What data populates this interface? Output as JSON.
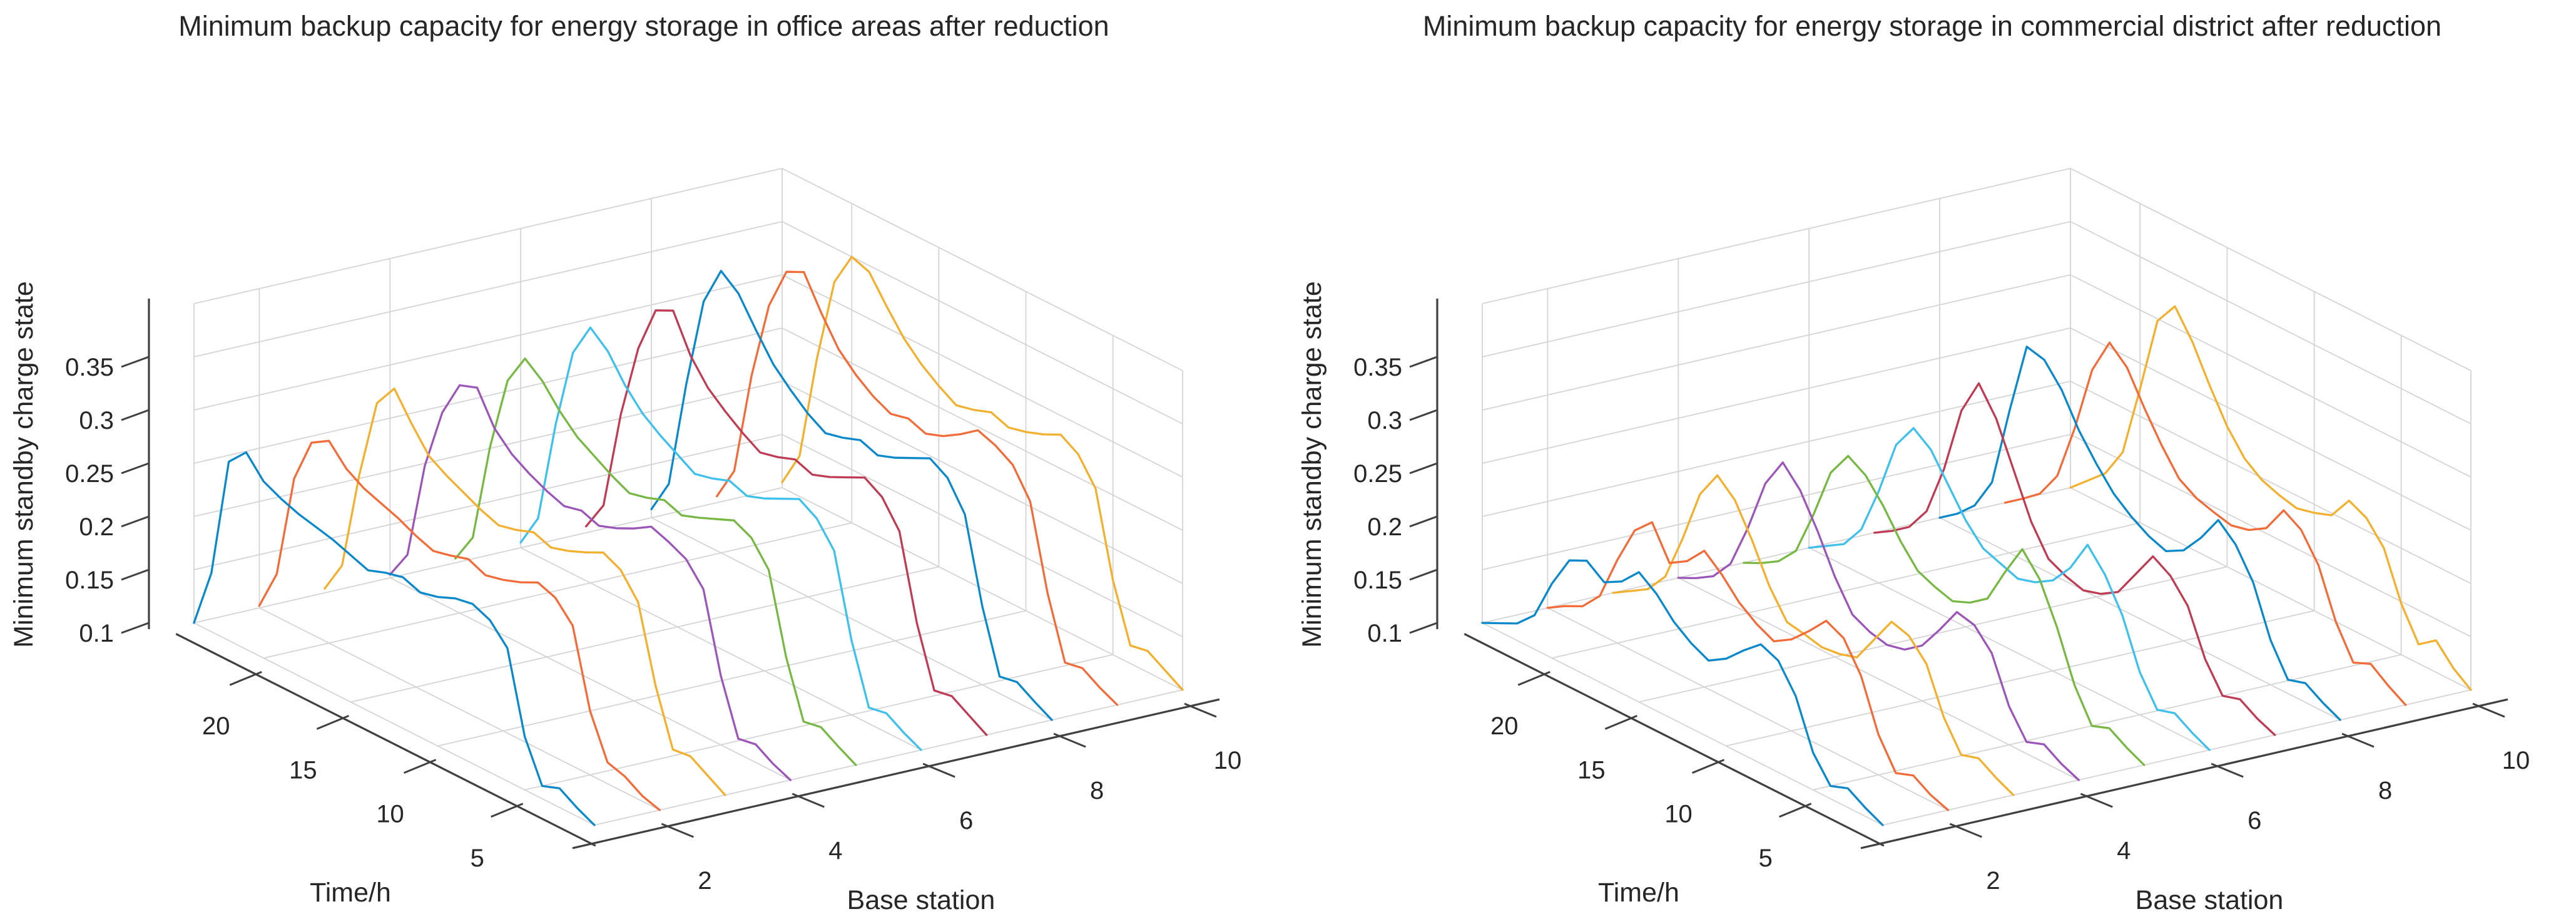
{
  "page": {
    "background": "#ffffff"
  },
  "panels": [
    {
      "title": "Minimum backup capacity for energy storage in office areas after reduction"
    },
    {
      "title": "Minimum backup capacity for energy storage in commercial district after reduction"
    }
  ],
  "chart_data": [
    {
      "type": "line",
      "projection": "3d-waterfall",
      "title": "Minimum backup capacity for energy storage in office areas after reduction",
      "xlabel": "Time/h",
      "ylabel": "Base station",
      "zlabel": "Minimum standby charge state",
      "xticks": [
        5,
        10,
        15,
        20
      ],
      "yticks": [
        2,
        4,
        6,
        8,
        10
      ],
      "zticks": [
        0.1,
        0.15,
        0.2,
        0.25,
        0.3,
        0.35
      ],
      "ztick_labels": [
        "0.1",
        "0.15",
        "0.2",
        "0.25",
        "0.3",
        "0.35"
      ],
      "xlim": [
        1,
        24
      ],
      "ylim": [
        1,
        10
      ],
      "zlim": [
        0.1,
        0.4
      ],
      "grid": true,
      "x_hours": [
        1,
        2,
        3,
        4,
        5,
        6,
        7,
        8,
        9,
        10,
        11,
        12,
        13,
        14,
        15,
        16,
        17,
        18,
        19,
        20,
        21,
        22,
        23,
        24
      ],
      "series": [
        {
          "name": "Base station 1",
          "color": "#0988CB",
          "values": [
            0.1,
            0.108,
            0.118,
            0.112,
            0.15,
            0.225,
            0.243,
            0.25,
            0.247,
            0.24,
            0.236,
            0.242,
            0.238,
            0.232,
            0.238,
            0.244,
            0.248,
            0.252,
            0.258,
            0.266,
            0.285,
            0.268,
            0.155,
            0.1
          ]
        },
        {
          "name": "Base station 2",
          "color": "#F26B38",
          "values": [
            0.1,
            0.105,
            0.115,
            0.12,
            0.16,
            0.232,
            0.25,
            0.256,
            0.248,
            0.242,
            0.238,
            0.245,
            0.24,
            0.236,
            0.242,
            0.25,
            0.256,
            0.262,
            0.272,
            0.29,
            0.28,
            0.238,
            0.14,
            0.102
          ]
        },
        {
          "name": "Base station 3",
          "color": "#F2B02E",
          "values": [
            0.1,
            0.11,
            0.12,
            0.118,
            0.17,
            0.24,
            0.262,
            0.27,
            0.262,
            0.255,
            0.25,
            0.256,
            0.25,
            0.246,
            0.252,
            0.26,
            0.268,
            0.278,
            0.3,
            0.325,
            0.303,
            0.228,
            0.134,
            0.104
          ]
        },
        {
          "name": "Base station 4",
          "color": "#9C56B8",
          "values": [
            0.1,
            0.107,
            0.117,
            0.114,
            0.165,
            0.238,
            0.258,
            0.266,
            0.272,
            0.262,
            0.254,
            0.248,
            0.254,
            0.25,
            0.256,
            0.264,
            0.274,
            0.29,
            0.32,
            0.314,
            0.28,
            0.222,
            0.13,
            0.103
          ]
        },
        {
          "name": "Base station 5",
          "color": "#77B843",
          "values": [
            0.1,
            0.109,
            0.119,
            0.116,
            0.168,
            0.242,
            0.264,
            0.272,
            0.265,
            0.258,
            0.252,
            0.258,
            0.252,
            0.248,
            0.256,
            0.266,
            0.276,
            0.292,
            0.312,
            0.325,
            0.296,
            0.226,
            0.132,
            0.104
          ]
        },
        {
          "name": "Base station 6",
          "color": "#3EC0ED",
          "values": [
            0.1,
            0.108,
            0.118,
            0.115,
            0.17,
            0.246,
            0.268,
            0.278,
            0.27,
            0.262,
            0.256,
            0.262,
            0.256,
            0.252,
            0.262,
            0.272,
            0.284,
            0.302,
            0.326,
            0.34,
            0.308,
            0.232,
            0.136,
            0.105
          ]
        },
        {
          "name": "Base station 7",
          "color": "#BE3B53",
          "values": [
            0.1,
            0.11,
            0.12,
            0.117,
            0.172,
            0.25,
            0.274,
            0.284,
            0.276,
            0.268,
            0.262,
            0.268,
            0.262,
            0.258,
            0.268,
            0.28,
            0.294,
            0.316,
            0.35,
            0.342,
            0.298,
            0.228,
            0.134,
            0.106
          ]
        },
        {
          "name": "Base station 8",
          "color": "#0988CB",
          "values": [
            0.1,
            0.109,
            0.119,
            0.116,
            0.174,
            0.252,
            0.278,
            0.288,
            0.28,
            0.272,
            0.266,
            0.272,
            0.266,
            0.262,
            0.272,
            0.286,
            0.302,
            0.326,
            0.352,
            0.365,
            0.328,
            0.242,
            0.14,
            0.108
          ]
        },
        {
          "name": "Base station 9",
          "color": "#F26B38",
          "values": [
            0.1,
            0.108,
            0.118,
            0.115,
            0.172,
            0.25,
            0.276,
            0.286,
            0.292,
            0.28,
            0.27,
            0.264,
            0.27,
            0.266,
            0.274,
            0.286,
            0.302,
            0.328,
            0.358,
            0.35,
            0.31,
            0.236,
            0.138,
            0.106
          ]
        },
        {
          "name": "Base station 10",
          "color": "#F2B02E",
          "values": [
            0.1,
            0.11,
            0.12,
            0.117,
            0.17,
            0.248,
            0.272,
            0.282,
            0.274,
            0.268,
            0.264,
            0.27,
            0.264,
            0.26,
            0.27,
            0.282,
            0.298,
            0.32,
            0.344,
            0.35,
            0.318,
            0.238,
            0.138,
            0.105
          ]
        }
      ]
    },
    {
      "type": "line",
      "projection": "3d-waterfall",
      "title": "Minimum backup capacity for energy storage in commercial district after reduction",
      "xlabel": "Time/h",
      "ylabel": "Base station",
      "zlabel": "Minimum standby charge state",
      "xticks": [
        5,
        10,
        15,
        20
      ],
      "yticks": [
        2,
        4,
        6,
        8,
        10
      ],
      "zticks": [
        0.1,
        0.15,
        0.2,
        0.25,
        0.3,
        0.35
      ],
      "ztick_labels": [
        "0.1",
        "0.15",
        "0.2",
        "0.25",
        "0.3",
        "0.35"
      ],
      "xlim": [
        1,
        24
      ],
      "ylim": [
        1,
        10
      ],
      "zlim": [
        0.1,
        0.4
      ],
      "grid": true,
      "x_hours": [
        1,
        2,
        3,
        4,
        5,
        6,
        7,
        8,
        9,
        10,
        11,
        12,
        13,
        14,
        15,
        16,
        17,
        18,
        19,
        20,
        21,
        22,
        23,
        24
      ],
      "series": [
        {
          "name": "Base station 1",
          "color": "#0988CB",
          "values": [
            0.1,
            0.108,
            0.118,
            0.112,
            0.135,
            0.18,
            0.205,
            0.212,
            0.198,
            0.182,
            0.172,
            0.18,
            0.192,
            0.21,
            0.222,
            0.205,
            0.196,
            0.208,
            0.2,
            0.17,
            0.132,
            0.116,
            0.108,
            0.1
          ]
        },
        {
          "name": "Base station 2",
          "color": "#F26B38",
          "values": [
            0.1,
            0.106,
            0.116,
            0.11,
            0.138,
            0.185,
            0.212,
            0.22,
            0.202,
            0.186,
            0.176,
            0.184,
            0.196,
            0.214,
            0.228,
            0.21,
            0.2,
            0.23,
            0.214,
            0.178,
            0.136,
            0.118,
            0.11,
            0.1
          ]
        },
        {
          "name": "Base station 3",
          "color": "#F2B02E",
          "values": [
            0.1,
            0.108,
            0.118,
            0.113,
            0.14,
            0.182,
            0.2,
            0.205,
            0.18,
            0.155,
            0.15,
            0.148,
            0.152,
            0.155,
            0.18,
            0.215,
            0.245,
            0.26,
            0.234,
            0.184,
            0.14,
            0.12,
            0.11,
            0.1
          ]
        },
        {
          "name": "Base station 4",
          "color": "#9C56B8",
          "values": [
            0.1,
            0.107,
            0.117,
            0.111,
            0.136,
            0.178,
            0.196,
            0.2,
            0.175,
            0.152,
            0.14,
            0.136,
            0.14,
            0.148,
            0.175,
            0.21,
            0.24,
            0.258,
            0.23,
            0.18,
            0.138,
            0.118,
            0.108,
            0.1
          ]
        },
        {
          "name": "Base station 5",
          "color": "#77B843",
          "values": [
            0.1,
            0.108,
            0.118,
            0.112,
            0.142,
            0.188,
            0.225,
            0.245,
            0.215,
            0.182,
            0.17,
            0.163,
            0.168,
            0.175,
            0.195,
            0.22,
            0.24,
            0.25,
            0.226,
            0.178,
            0.136,
            0.118,
            0.108,
            0.1
          ]
        },
        {
          "name": "Base station 6",
          "color": "#3EC0ED",
          "values": [
            0.1,
            0.108,
            0.118,
            0.113,
            0.14,
            0.185,
            0.215,
            0.235,
            0.205,
            0.185,
            0.175,
            0.17,
            0.176,
            0.182,
            0.2,
            0.225,
            0.25,
            0.262,
            0.238,
            0.186,
            0.142,
            0.12,
            0.11,
            0.1
          ]
        },
        {
          "name": "Base station 7",
          "color": "#BE3B53",
          "values": [
            0.1,
            0.107,
            0.117,
            0.112,
            0.138,
            0.18,
            0.2,
            0.21,
            0.185,
            0.16,
            0.15,
            0.145,
            0.15,
            0.158,
            0.185,
            0.225,
            0.265,
            0.29,
            0.256,
            0.193,
            0.145,
            0.122,
            0.11,
            0.1
          ]
        },
        {
          "name": "Base station 8",
          "color": "#0988CB",
          "values": [
            0.1,
            0.108,
            0.118,
            0.113,
            0.142,
            0.188,
            0.215,
            0.23,
            0.205,
            0.185,
            0.176,
            0.182,
            0.192,
            0.205,
            0.225,
            0.248,
            0.278,
            0.298,
            0.302,
            0.233,
            0.158,
            0.128,
            0.112,
            0.1
          ]
        },
        {
          "name": "Base station 9",
          "color": "#F26B38",
          "values": [
            0.1,
            0.11,
            0.122,
            0.115,
            0.145,
            0.19,
            0.215,
            0.225,
            0.2,
            0.19,
            0.186,
            0.19,
            0.195,
            0.205,
            0.228,
            0.255,
            0.285,
            0.3,
            0.266,
            0.203,
            0.15,
            0.125,
            0.112,
            0.1
          ]
        },
        {
          "name": "Base station 10",
          "color": "#F2B02E",
          "values": [
            0.1,
            0.112,
            0.13,
            0.118,
            0.148,
            0.192,
            0.212,
            0.22,
            0.198,
            0.192,
            0.188,
            0.192,
            0.198,
            0.21,
            0.232,
            0.262,
            0.295,
            0.32,
            0.298,
            0.226,
            0.158,
            0.13,
            0.115,
            0.1
          ]
        }
      ]
    }
  ]
}
